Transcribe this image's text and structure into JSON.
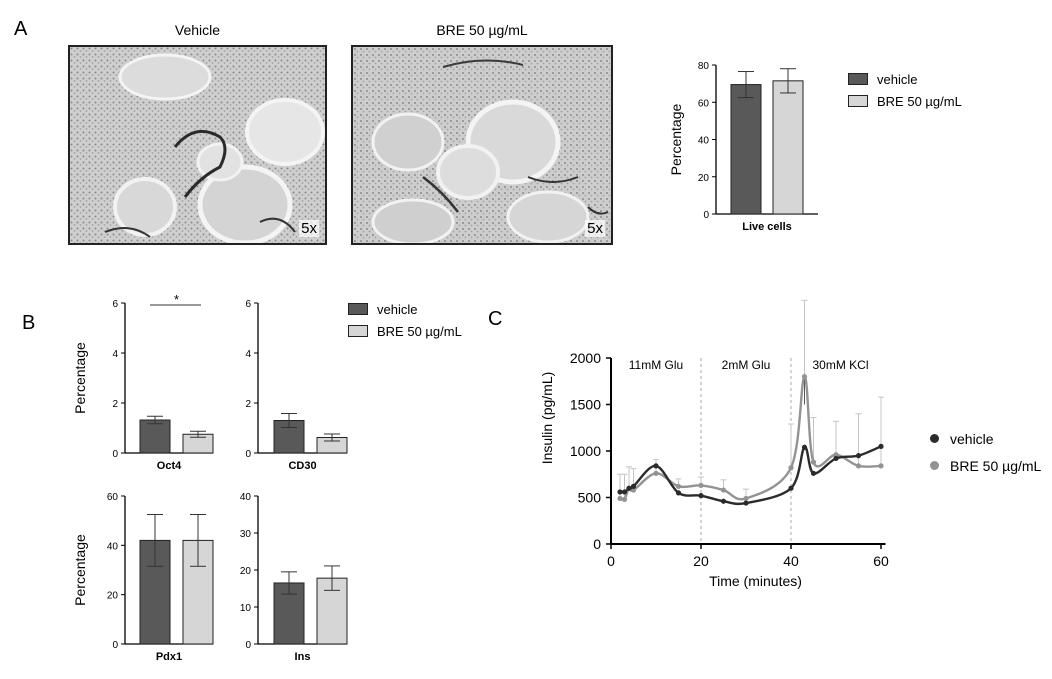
{
  "panels": {
    "a": "A",
    "b": "B",
    "c": "C"
  },
  "micrographs": [
    {
      "title": "Vehicle",
      "magnification": "5x"
    },
    {
      "title": "BRE 50 µg/mL",
      "magnification": "5x"
    }
  ],
  "legend_a": [
    {
      "label": "vehicle",
      "color": "#595959"
    },
    {
      "label": "BRE 50 µg/mL",
      "color": "#d6d6d6"
    }
  ],
  "legend_b": [
    {
      "label": "vehicle",
      "color": "#595959"
    },
    {
      "label": "BRE 50 µg/mL",
      "color": "#d6d6d6"
    }
  ],
  "legend_c": [
    {
      "label": "vehicle",
      "color": "#2b2b2b"
    },
    {
      "label": "BRE 50 µg/mL",
      "color": "#939393"
    }
  ],
  "colors": {
    "vehicle_bar": "#595959",
    "bre_bar": "#d6d6d6",
    "vehicle_line": "#2b2b2b",
    "bre_line": "#939393"
  },
  "chart_data": [
    {
      "id": "live-cells",
      "type": "bar",
      "categories": [
        "Live cells"
      ],
      "series": [
        {
          "name": "vehicle",
          "values": [
            69.5
          ],
          "errors": [
            7
          ]
        },
        {
          "name": "BRE 50 µg/mL",
          "values": [
            71.5
          ],
          "errors": [
            6.5
          ]
        }
      ],
      "ylabel": "Percentage",
      "ylim": [
        0,
        80
      ],
      "yticks": [
        0,
        20,
        40,
        60,
        80
      ],
      "legend": "right"
    },
    {
      "id": "oct4",
      "type": "bar",
      "categories": [
        "Oct4"
      ],
      "series": [
        {
          "name": "vehicle",
          "values": [
            1.32
          ],
          "errors": [
            0.15
          ]
        },
        {
          "name": "BRE 50 µg/mL",
          "values": [
            0.75
          ],
          "errors": [
            0.12
          ]
        }
      ],
      "ylabel": "Percentage",
      "ylim": [
        0,
        6
      ],
      "yticks": [
        0,
        2,
        4,
        6
      ],
      "annotation": "*"
    },
    {
      "id": "cd30",
      "type": "bar",
      "categories": [
        "CD30"
      ],
      "series": [
        {
          "name": "vehicle",
          "values": [
            1.3
          ],
          "errors": [
            0.28
          ]
        },
        {
          "name": "BRE 50 µg/mL",
          "values": [
            0.62
          ],
          "errors": [
            0.14
          ]
        }
      ],
      "ylim": [
        0,
        6
      ],
      "yticks": [
        0,
        2,
        4,
        6
      ]
    },
    {
      "id": "pdx1",
      "type": "bar",
      "categories": [
        "Pdx1"
      ],
      "series": [
        {
          "name": "vehicle",
          "values": [
            42
          ],
          "errors": [
            10.5
          ]
        },
        {
          "name": "BRE 50 µg/mL",
          "values": [
            42
          ],
          "errors": [
            10.5
          ]
        }
      ],
      "ylabel": "Percentage",
      "ylim": [
        0,
        60
      ],
      "yticks": [
        0,
        20,
        40,
        60
      ]
    },
    {
      "id": "ins",
      "type": "bar",
      "categories": [
        "Ins"
      ],
      "series": [
        {
          "name": "vehicle",
          "values": [
            16.5
          ],
          "errors": [
            3
          ]
        },
        {
          "name": "BRE 50 µg/mL",
          "values": [
            17.8
          ],
          "errors": [
            3.3
          ]
        }
      ],
      "ylim": [
        0,
        40
      ],
      "yticks": [
        0,
        10,
        20,
        30,
        40
      ]
    },
    {
      "id": "insulin",
      "type": "line",
      "xlabel": "Time (minutes)",
      "ylabel": "Insulin (pg/mL)",
      "xlim": [
        0,
        62
      ],
      "ylim": [
        0,
        2000
      ],
      "xticks": [
        0,
        20,
        40,
        60
      ],
      "yticks": [
        0,
        500,
        1000,
        1500,
        2000
      ],
      "phase_lines": [
        20,
        40
      ],
      "kcl_marker": 43,
      "phase_labels": [
        {
          "text": "11mM Glu",
          "x": 10
        },
        {
          "text": "2mM Glu",
          "x": 30
        },
        {
          "text": "30mM KCl",
          "x": 51
        }
      ],
      "series": [
        {
          "name": "vehicle",
          "x": [
            2,
            3,
            4,
            5,
            10,
            15,
            20,
            25,
            30,
            40,
            43,
            45,
            50,
            55,
            60
          ],
          "y": [
            560,
            560,
            600,
            620,
            840,
            550,
            520,
            460,
            440,
            600,
            1040,
            760,
            920,
            950,
            1050
          ],
          "errors": [
            0,
            0,
            0,
            0,
            0,
            0,
            0,
            0,
            0,
            0,
            0,
            0,
            0,
            0,
            0
          ]
        },
        {
          "name": "BRE 50 µg/mL",
          "x": [
            2,
            3,
            4,
            5,
            10,
            15,
            20,
            25,
            30,
            40,
            43,
            45,
            50,
            55,
            60
          ],
          "y": [
            490,
            480,
            600,
            580,
            760,
            620,
            630,
            580,
            490,
            820,
            1800,
            880,
            960,
            840,
            840
          ],
          "errors": [
            260,
            270,
            230,
            230,
            150,
            80,
            90,
            110,
            100,
            470,
            820,
            480,
            360,
            560,
            740
          ]
        }
      ],
      "legend": "right"
    }
  ]
}
